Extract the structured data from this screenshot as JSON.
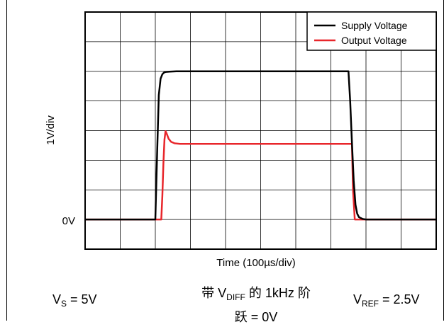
{
  "chart_data": {
    "type": "line",
    "title": "",
    "xlabel": "Time (100µs/div)",
    "ylabel": "1V/div",
    "y_tick_labels": [
      "0V"
    ],
    "x_divisions": 10,
    "y_divisions": 8,
    "xlim": [
      0,
      1000
    ],
    "ylim": [
      -1,
      7
    ],
    "grid": true,
    "legend_position": "top-right",
    "series": [
      {
        "name": "Supply Voltage",
        "color": "#000000",
        "x": [
          0,
          200,
          205,
          210,
          215,
          220,
          225,
          230,
          240,
          260,
          300,
          750,
          755,
          760,
          765,
          770,
          775,
          780,
          790,
          800,
          850,
          1000
        ],
        "y": [
          0,
          0,
          2.2,
          4.2,
          4.75,
          4.9,
          4.96,
          4.98,
          4.99,
          5,
          5,
          5,
          4.0,
          2.6,
          1.3,
          0.5,
          0.2,
          0.08,
          0.02,
          0,
          0,
          0
        ]
      },
      {
        "name": "Output Voltage",
        "color": "#e8262b",
        "x": [
          0,
          217,
          220,
          223,
          226,
          229,
          233,
          238,
          245,
          255,
          270,
          300,
          760,
          763,
          768,
          1000
        ],
        "y": [
          0,
          0,
          0.8,
          1.9,
          2.7,
          2.98,
          2.88,
          2.72,
          2.62,
          2.57,
          2.55,
          2.55,
          2.55,
          1.0,
          0,
          0
        ]
      }
    ]
  },
  "captions": {
    "vs_symbol": "V",
    "vs_sub": "S",
    "vs_value": " = 5V",
    "center_prefix": "带 V",
    "center_sub": "DIFF",
    "center_suffix": " 的 1kHz 阶",
    "center_line2": "跃 = 0V",
    "vref_symbol": "V",
    "vref_sub": "REF",
    "vref_value": " = 2.5V"
  }
}
